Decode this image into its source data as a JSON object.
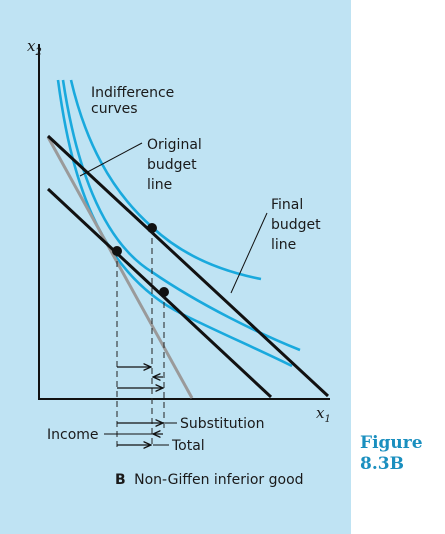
{
  "figure": {
    "label_line1": "Figure",
    "label_line2": "8.3B",
    "caption_letter": "B",
    "caption_text": "Non-Giffen inferior good"
  },
  "axes": {
    "y_var": "x",
    "y_sub": "2",
    "x_var": "x",
    "x_sub": "1"
  },
  "labels": {
    "indifference_line1": "Indifference",
    "indifference_line2": "curves",
    "original_line1": "Original",
    "original_line2": "budget",
    "original_line3": "line",
    "final_line1": "Final",
    "final_line2": "budget",
    "final_line3": "line"
  },
  "effects": {
    "substitution": "Substitution",
    "income": "Income",
    "total": "Total"
  },
  "colors": {
    "panel": "#bfe3f3",
    "indifference_curve": "#19a9dd",
    "compensated_line": "#9a9a9a",
    "budget_line": "#111111",
    "figure_label": "#1a8fbf"
  }
}
